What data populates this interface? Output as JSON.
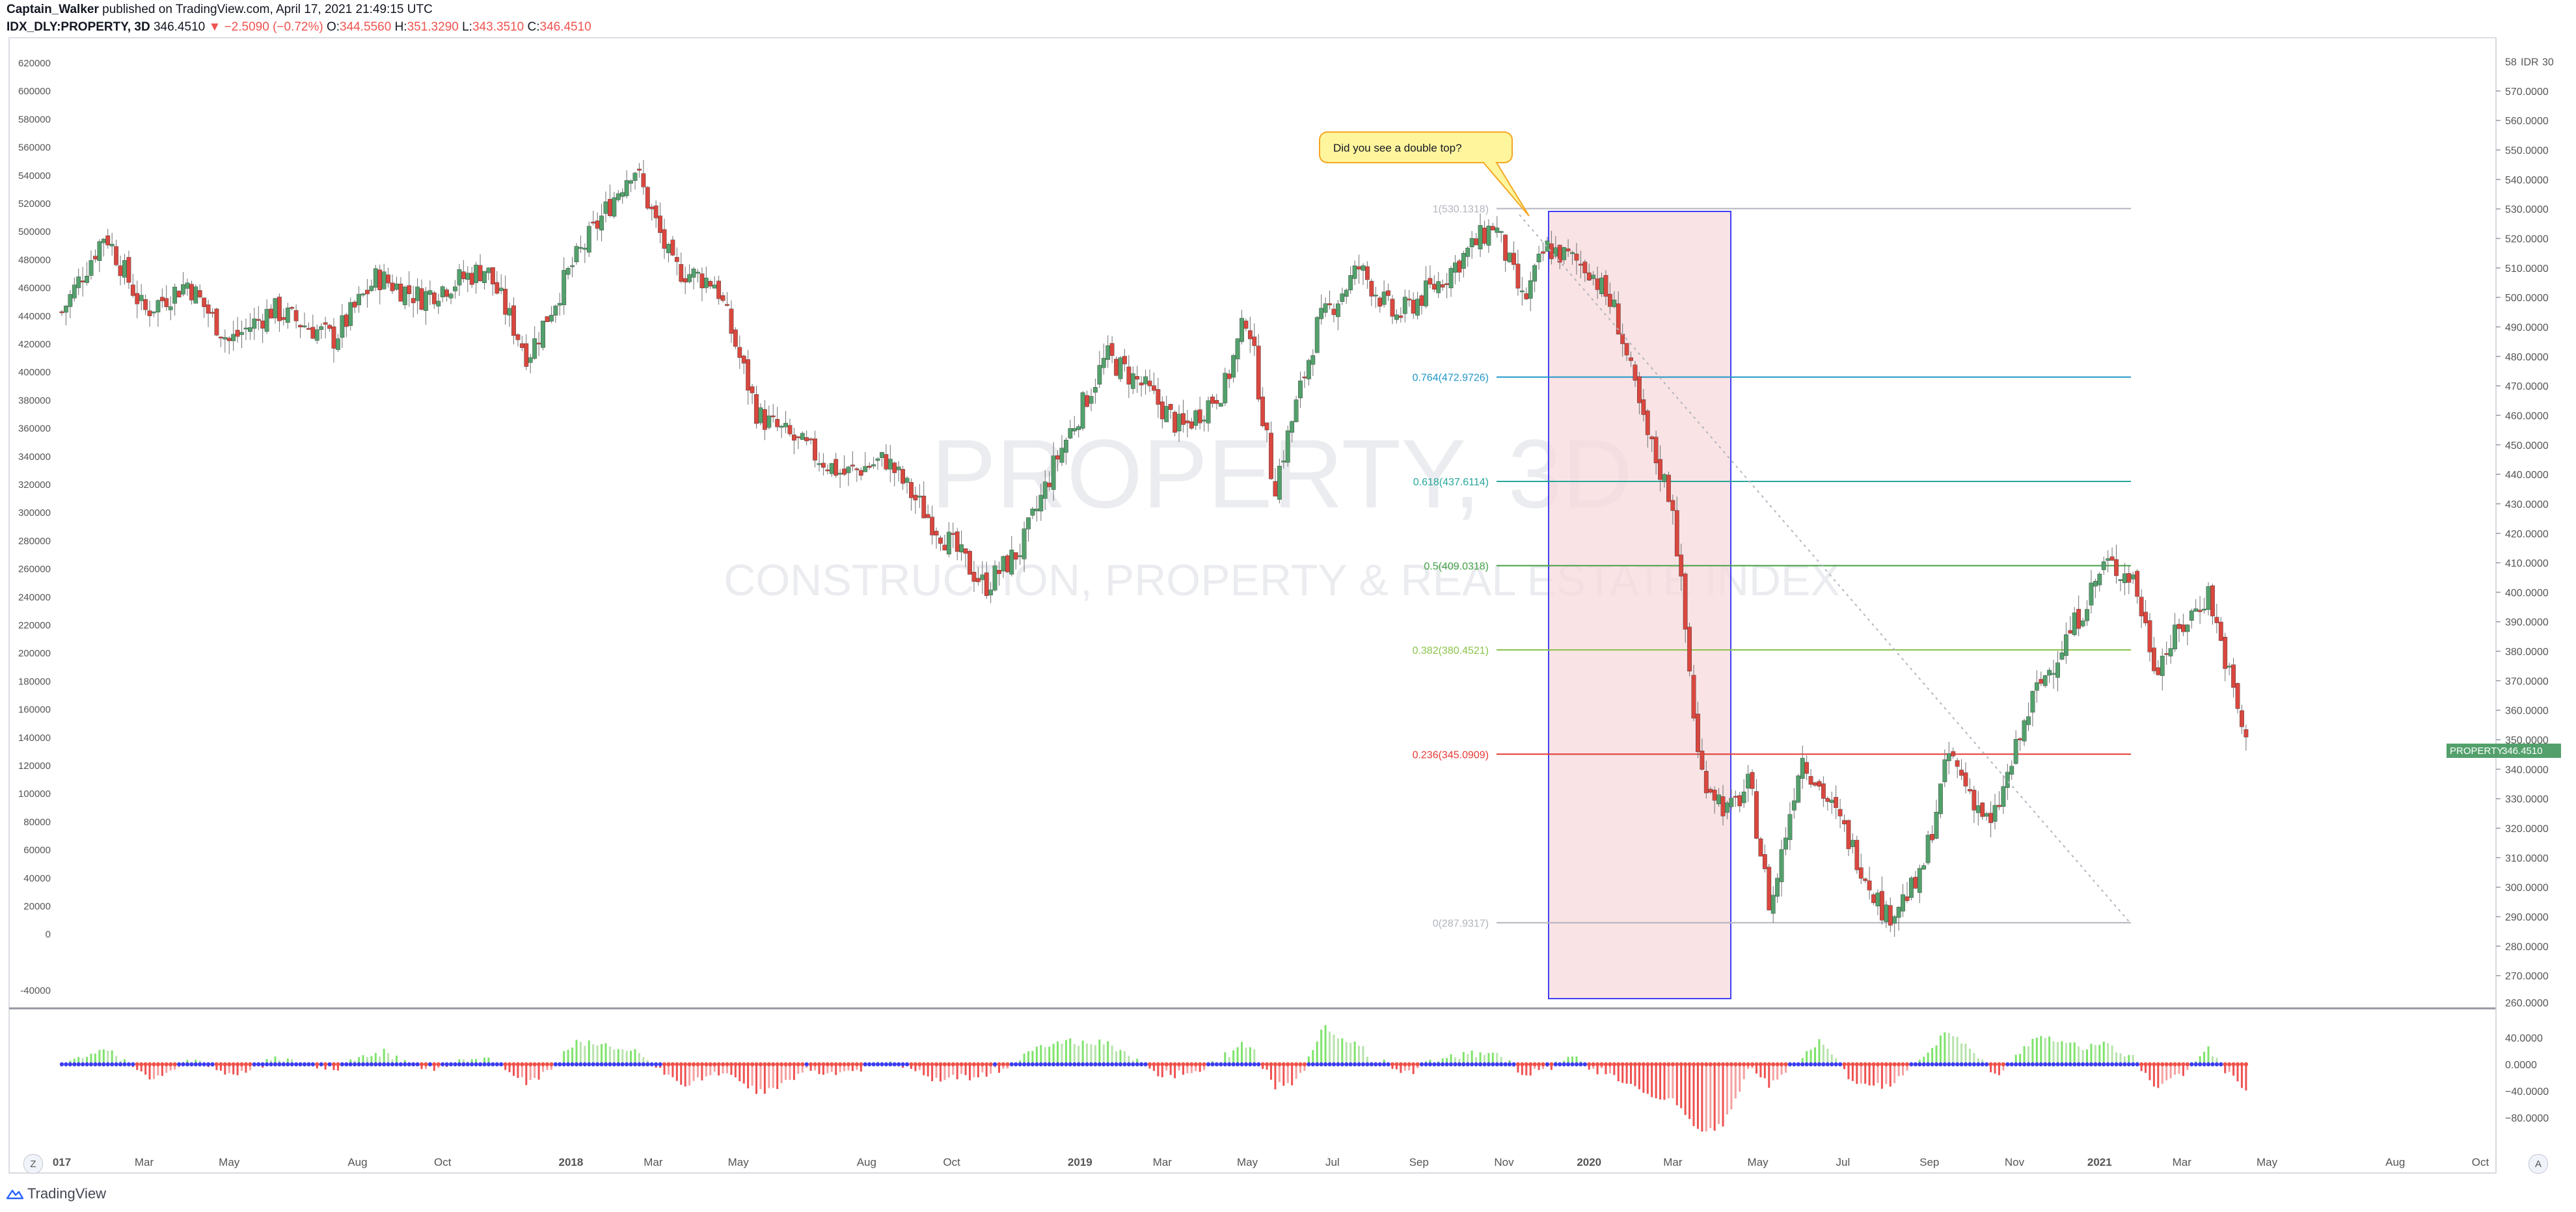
{
  "header": {
    "author": "Captain_Walker",
    "published": "published on TradingView.com, April 17, 2021 21:49:15 UTC",
    "symbol": "IDX_DLY:PROPERTY, 3D",
    "last": "346.4510",
    "change": "−2.5090 (−0.72%)",
    "o_label": "O:",
    "o_value": "344.5560",
    "h_label": "H:",
    "h_value": "351.3290",
    "l_label": "L:",
    "l_value": "343.3510",
    "c_label": "C:",
    "c_value": "346.4510"
  },
  "watermark": {
    "title": "PROPERTY, 3D",
    "subtitle": "CONSTRUCTION, PROPERTY & REAL ESTATE INDEX"
  },
  "annotation": {
    "callout": "Did you see a double top?"
  },
  "price_tag": {
    "name": "PROPERTY",
    "value": "346.4510"
  },
  "footer": {
    "brand": "TradingView",
    "btn_left": "Z",
    "btn_right": "A"
  },
  "colors": {
    "up": "#53a06c",
    "down": "#d9473e",
    "blue_box": "#3f3ff5",
    "pink_box": "#f7d9dc",
    "price_tag": "#53a06c"
  },
  "chart_data": {
    "type": "candlestick",
    "time_axis": {
      "range": [
        "2017-01",
        "2021-10"
      ],
      "ticks": [
        {
          "date": "2017-01",
          "label": "017"
        },
        {
          "date": "2017-03",
          "label": "Mar"
        },
        {
          "date": "2017-05",
          "label": "May"
        },
        {
          "date": "2017-08",
          "label": "Aug"
        },
        {
          "date": "2017-10",
          "label": "Oct"
        },
        {
          "date": "2018-01",
          "label": "2018"
        },
        {
          "date": "2018-03",
          "label": "Mar"
        },
        {
          "date": "2018-05",
          "label": "May"
        },
        {
          "date": "2018-08",
          "label": "Aug"
        },
        {
          "date": "2018-10",
          "label": "Oct"
        },
        {
          "date": "2019-01",
          "label": "2019"
        },
        {
          "date": "2019-03",
          "label": "Mar"
        },
        {
          "date": "2019-05",
          "label": "May"
        },
        {
          "date": "2019-07",
          "label": "Jul"
        },
        {
          "date": "2019-09",
          "label": "Sep"
        },
        {
          "date": "2019-11",
          "label": "Nov"
        },
        {
          "date": "2020-01",
          "label": "2020"
        },
        {
          "date": "2020-03",
          "label": "Mar"
        },
        {
          "date": "2020-05",
          "label": "May"
        },
        {
          "date": "2020-07",
          "label": "Jul"
        },
        {
          "date": "2020-09",
          "label": "Sep"
        },
        {
          "date": "2020-11",
          "label": "Nov"
        },
        {
          "date": "2021-01",
          "label": "2021"
        },
        {
          "date": "2021-03",
          "label": "Mar"
        },
        {
          "date": "2021-05",
          "label": "May"
        },
        {
          "date": "2021-08",
          "label": "Aug"
        },
        {
          "date": "2021-10",
          "label": "Oct"
        }
      ]
    },
    "right_axis": {
      "ylim": [
        260,
        581
      ],
      "unit_label": "IDR",
      "ticks": [
        "270.0000",
        "280.0000",
        "290.0000",
        "300.0000",
        "310.0000",
        "320.0000",
        "330.0000",
        "340.0000",
        "350.0000",
        "360.0000",
        "370.0000",
        "380.0000",
        "390.0000",
        "400.0000",
        "410.0000",
        "420.0000",
        "430.0000",
        "440.0000",
        "450.0000",
        "460.0000",
        "470.0000",
        "480.0000",
        "490.0000",
        "500.0000",
        "510.0000",
        "520.0000",
        "530.0000",
        "540.0000",
        "550.0000",
        "560.0000",
        "570.0000"
      ],
      "top_tick": "58",
      "top_partial": "30",
      "bottom_partial": "260.0000"
    },
    "left_axis": {
      "ticks": [
        "620000",
        "600000",
        "580000",
        "560000",
        "540000",
        "520000",
        "500000",
        "480000",
        "460000",
        "440000",
        "420000",
        "400000",
        "380000",
        "360000",
        "340000",
        "320000",
        "300000",
        "280000",
        "260000",
        "240000",
        "220000",
        "200000",
        "180000",
        "160000",
        "140000",
        "120000",
        "100000",
        "80000",
        "60000",
        "40000",
        "20000",
        "0",
        "-40000"
      ]
    },
    "oscillator_axis": {
      "ticks": [
        "40.0000",
        "0.0000",
        "−40.0000",
        "−80.0000"
      ],
      "values": [
        40,
        0,
        -40,
        -80
      ],
      "ylim": [
        -97,
        60
      ]
    },
    "series_key_points": [
      {
        "date": "2017-01-01",
        "close": 495
      },
      {
        "date": "2017-02-01",
        "close": 522
      },
      {
        "date": "2017-03-01",
        "close": 495
      },
      {
        "date": "2017-04-01",
        "close": 505
      },
      {
        "date": "2017-05-01",
        "close": 485
      },
      {
        "date": "2017-06-01",
        "close": 496
      },
      {
        "date": "2017-07-15",
        "close": 486
      },
      {
        "date": "2017-08-15",
        "close": 507
      },
      {
        "date": "2017-09-15",
        "close": 500
      },
      {
        "date": "2017-11-01",
        "close": 510
      },
      {
        "date": "2017-12-01",
        "close": 480
      },
      {
        "date": "2018-01-01",
        "close": 510
      },
      {
        "date": "2018-02-15",
        "close": 545
      },
      {
        "date": "2018-03-15",
        "close": 510
      },
      {
        "date": "2018-04-15",
        "close": 505
      },
      {
        "date": "2018-05-15",
        "close": 460
      },
      {
        "date": "2018-06-15",
        "close": 450
      },
      {
        "date": "2018-07-15",
        "close": 440
      },
      {
        "date": "2018-08-15",
        "close": 445
      },
      {
        "date": "2018-09-15",
        "close": 425
      },
      {
        "date": "2018-10-25",
        "close": 402
      },
      {
        "date": "2018-11-20",
        "close": 415
      },
      {
        "date": "2018-12-15",
        "close": 445
      },
      {
        "date": "2019-01-20",
        "close": 480
      },
      {
        "date": "2019-02-15",
        "close": 470
      },
      {
        "date": "2019-03-15",
        "close": 455
      },
      {
        "date": "2019-04-15",
        "close": 470
      },
      {
        "date": "2019-05-01",
        "close": 495
      },
      {
        "date": "2019-05-20",
        "close": 435
      },
      {
        "date": "2019-06-20",
        "close": 490
      },
      {
        "date": "2019-07-20",
        "close": 510
      },
      {
        "date": "2019-08-15",
        "close": 493
      },
      {
        "date": "2019-09-15",
        "close": 505
      },
      {
        "date": "2019-10-25",
        "close": 525
      },
      {
        "date": "2019-11-15",
        "close": 498
      },
      {
        "date": "2019-12-01",
        "close": 517
      },
      {
        "date": "2020-01-01",
        "close": 510
      },
      {
        "date": "2020-01-20",
        "close": 495
      },
      {
        "date": "2020-02-10",
        "close": 455
      },
      {
        "date": "2020-03-01",
        "close": 430
      },
      {
        "date": "2020-03-20",
        "close": 340
      },
      {
        "date": "2020-04-10",
        "close": 325
      },
      {
        "date": "2020-04-25",
        "close": 335
      },
      {
        "date": "2020-05-10",
        "close": 292
      },
      {
        "date": "2020-06-01",
        "close": 345
      },
      {
        "date": "2020-07-01",
        "close": 320
      },
      {
        "date": "2020-08-01",
        "close": 290
      },
      {
        "date": "2020-08-25",
        "close": 302
      },
      {
        "date": "2020-09-15",
        "close": 345
      },
      {
        "date": "2020-10-15",
        "close": 320
      },
      {
        "date": "2020-11-15",
        "close": 365
      },
      {
        "date": "2020-12-15",
        "close": 390
      },
      {
        "date": "2021-01-05",
        "close": 410
      },
      {
        "date": "2021-01-25",
        "close": 405
      },
      {
        "date": "2021-02-10",
        "close": 375
      },
      {
        "date": "2021-03-01",
        "close": 388
      },
      {
        "date": "2021-03-20",
        "close": 400
      },
      {
        "date": "2021-04-05",
        "close": 370
      },
      {
        "date": "2021-04-17",
        "close": 346.451
      }
    ],
    "fibonacci": {
      "high": 530.1318,
      "low": 287.9317,
      "levels": [
        {
          "label": "1(530.1318)",
          "value": 530.1318,
          "color": "#b2b5be"
        },
        {
          "label": "0.764(472.9726)",
          "value": 472.9726,
          "color": "#2196c8"
        },
        {
          "label": "0.618(437.6114)",
          "value": 437.6114,
          "color": "#25a69a"
        },
        {
          "label": "0.5(409.0318)",
          "value": 409.0318,
          "color": "#43a047"
        },
        {
          "label": "0.382(380.4521)",
          "value": 380.4521,
          "color": "#8bc34a"
        },
        {
          "label": "0.236(345.0909)",
          "value": 345.0909,
          "color": "#e53935"
        },
        {
          "label": "0(287.9317)",
          "value": 287.9317,
          "color": "#b2b5be"
        }
      ]
    },
    "grid": false
  }
}
